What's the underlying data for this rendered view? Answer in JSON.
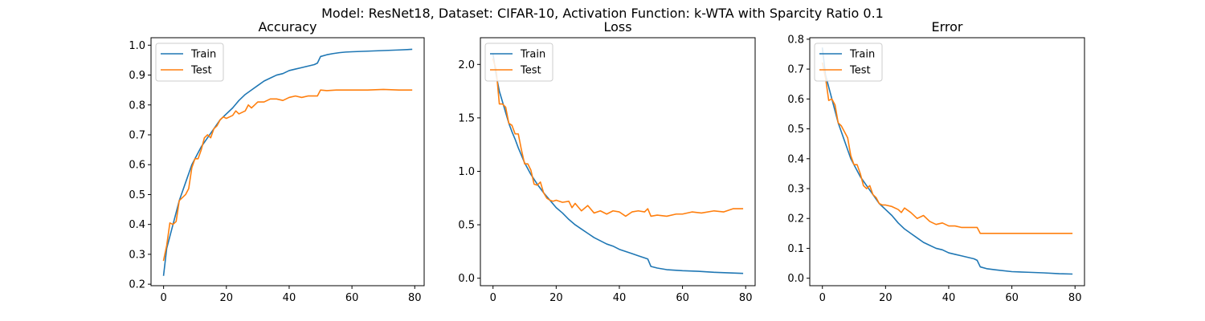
{
  "figure": {
    "suptitle": "Model: ResNet18, Dataset: CIFAR-10, Activation Function: k-WTA with Sparcity Ratio 0.1"
  },
  "chart_data": [
    {
      "type": "line",
      "title": "Accuracy",
      "xlabel": "",
      "ylabel": "",
      "xlim": [
        -4,
        83
      ],
      "ylim": [
        0.195,
        1.025
      ],
      "xticks": [
        0,
        20,
        40,
        60,
        80
      ],
      "xtick_labels": [
        "0",
        "20",
        "40",
        "60",
        "80"
      ],
      "yticks": [
        0.2,
        0.3,
        0.4,
        0.5,
        0.6,
        0.7,
        0.8,
        0.9,
        1.0
      ],
      "ytick_labels": [
        "0.2",
        "0.3",
        "0.4",
        "0.5",
        "0.6",
        "0.7",
        "0.8",
        "0.9",
        "1.0"
      ],
      "grid": false,
      "legend": "upper-left",
      "series": [
        {
          "name": "Train",
          "color": "#1f77b4",
          "x": [
            0,
            1,
            2,
            3,
            4,
            5,
            6,
            7,
            8,
            9,
            10,
            12,
            14,
            16,
            18,
            20,
            22,
            24,
            26,
            28,
            30,
            32,
            34,
            36,
            38,
            40,
            42,
            44,
            46,
            48,
            49,
            50,
            52,
            54,
            56,
            58,
            60,
            65,
            70,
            75,
            79
          ],
          "y": [
            0.23,
            0.32,
            0.36,
            0.4,
            0.44,
            0.48,
            0.51,
            0.54,
            0.57,
            0.6,
            0.62,
            0.66,
            0.69,
            0.72,
            0.75,
            0.77,
            0.79,
            0.815,
            0.835,
            0.85,
            0.865,
            0.88,
            0.89,
            0.9,
            0.905,
            0.915,
            0.92,
            0.925,
            0.93,
            0.935,
            0.94,
            0.962,
            0.968,
            0.972,
            0.975,
            0.977,
            0.978,
            0.98,
            0.982,
            0.984,
            0.986
          ]
        },
        {
          "name": "Test",
          "color": "#ff7f0e",
          "x": [
            0,
            1,
            2,
            3,
            4,
            5,
            6,
            7,
            8,
            9,
            10,
            11,
            12,
            13,
            14,
            15,
            16,
            17,
            18,
            19,
            20,
            21,
            22,
            23,
            24,
            25,
            26,
            27,
            28,
            29,
            30,
            32,
            34,
            36,
            38,
            40,
            42,
            44,
            46,
            48,
            49,
            50,
            52,
            55,
            60,
            65,
            70,
            75,
            79
          ],
          "y": [
            0.28,
            0.33,
            0.405,
            0.4,
            0.41,
            0.48,
            0.49,
            0.5,
            0.52,
            0.59,
            0.62,
            0.62,
            0.65,
            0.69,
            0.7,
            0.69,
            0.72,
            0.73,
            0.75,
            0.76,
            0.755,
            0.76,
            0.765,
            0.78,
            0.77,
            0.775,
            0.78,
            0.8,
            0.79,
            0.8,
            0.81,
            0.81,
            0.82,
            0.82,
            0.815,
            0.825,
            0.83,
            0.825,
            0.83,
            0.83,
            0.83,
            0.85,
            0.848,
            0.85,
            0.85,
            0.85,
            0.852,
            0.85,
            0.85
          ]
        }
      ]
    },
    {
      "type": "line",
      "title": "Loss",
      "xlabel": "",
      "ylabel": "",
      "xlim": [
        -4,
        83
      ],
      "ylim": [
        -0.07,
        2.25
      ],
      "xticks": [
        0,
        20,
        40,
        60,
        80
      ],
      "xtick_labels": [
        "0",
        "20",
        "40",
        "60",
        "80"
      ],
      "yticks": [
        0.0,
        0.5,
        1.0,
        1.5,
        2.0
      ],
      "ytick_labels": [
        "0.0",
        "0.5",
        "1.0",
        "1.5",
        "2.0"
      ],
      "grid": false,
      "legend": "upper-left",
      "series": [
        {
          "name": "Train",
          "color": "#1f77b4",
          "x": [
            0,
            1,
            2,
            3,
            4,
            5,
            6,
            7,
            8,
            9,
            10,
            12,
            14,
            16,
            18,
            20,
            22,
            24,
            26,
            28,
            30,
            32,
            34,
            36,
            38,
            40,
            42,
            44,
            46,
            48,
            49,
            50,
            52,
            55,
            60,
            65,
            70,
            75,
            79
          ],
          "y": [
            2.1,
            1.9,
            1.75,
            1.65,
            1.55,
            1.45,
            1.37,
            1.3,
            1.22,
            1.15,
            1.08,
            0.97,
            0.88,
            0.8,
            0.73,
            0.66,
            0.61,
            0.55,
            0.5,
            0.46,
            0.42,
            0.38,
            0.35,
            0.32,
            0.3,
            0.27,
            0.25,
            0.23,
            0.21,
            0.19,
            0.18,
            0.11,
            0.095,
            0.08,
            0.07,
            0.065,
            0.055,
            0.05,
            0.045
          ]
        },
        {
          "name": "Test",
          "color": "#ff7f0e",
          "x": [
            0,
            1,
            2,
            3,
            4,
            5,
            6,
            7,
            8,
            9,
            10,
            11,
            12,
            13,
            14,
            15,
            16,
            17,
            18,
            19,
            20,
            22,
            24,
            25,
            26,
            28,
            30,
            32,
            34,
            36,
            38,
            40,
            42,
            44,
            46,
            48,
            49,
            50,
            52,
            55,
            58,
            60,
            63,
            66,
            70,
            73,
            76,
            79
          ],
          "y": [
            2.05,
            1.95,
            1.63,
            1.63,
            1.6,
            1.45,
            1.43,
            1.35,
            1.35,
            1.2,
            1.07,
            1.07,
            1.01,
            0.88,
            0.87,
            0.9,
            0.8,
            0.75,
            0.73,
            0.72,
            0.73,
            0.71,
            0.72,
            0.66,
            0.7,
            0.63,
            0.68,
            0.61,
            0.63,
            0.6,
            0.63,
            0.62,
            0.58,
            0.62,
            0.63,
            0.62,
            0.65,
            0.58,
            0.59,
            0.58,
            0.6,
            0.6,
            0.62,
            0.61,
            0.63,
            0.62,
            0.65,
            0.65
          ]
        }
      ]
    },
    {
      "type": "line",
      "title": "Error",
      "xlabel": "",
      "ylabel": "",
      "xlim": [
        -4,
        83
      ],
      "ylim": [
        -0.025,
        0.805
      ],
      "xticks": [
        0,
        20,
        40,
        60,
        80
      ],
      "xtick_labels": [
        "0",
        "20",
        "40",
        "60",
        "80"
      ],
      "yticks": [
        0.0,
        0.1,
        0.2,
        0.3,
        0.4,
        0.5,
        0.6,
        0.7,
        0.8
      ],
      "ytick_labels": [
        "0.0",
        "0.1",
        "0.2",
        "0.3",
        "0.4",
        "0.5",
        "0.6",
        "0.7",
        "0.8"
      ],
      "grid": false,
      "legend": "upper-left",
      "series": [
        {
          "name": "Train",
          "color": "#1f77b4",
          "x": [
            0,
            1,
            2,
            3,
            4,
            5,
            6,
            7,
            8,
            9,
            10,
            12,
            14,
            16,
            18,
            20,
            22,
            24,
            26,
            28,
            30,
            32,
            34,
            36,
            38,
            40,
            42,
            44,
            46,
            48,
            49,
            50,
            52,
            55,
            60,
            65,
            70,
            75,
            79
          ],
          "y": [
            0.77,
            0.68,
            0.64,
            0.6,
            0.56,
            0.52,
            0.49,
            0.46,
            0.43,
            0.4,
            0.38,
            0.34,
            0.31,
            0.28,
            0.25,
            0.23,
            0.21,
            0.185,
            0.165,
            0.15,
            0.135,
            0.12,
            0.11,
            0.1,
            0.095,
            0.085,
            0.08,
            0.075,
            0.07,
            0.065,
            0.06,
            0.038,
            0.032,
            0.028,
            0.022,
            0.02,
            0.018,
            0.015,
            0.014
          ]
        },
        {
          "name": "Test",
          "color": "#ff7f0e",
          "x": [
            0,
            1,
            2,
            3,
            4,
            5,
            6,
            7,
            8,
            9,
            10,
            11,
            12,
            13,
            14,
            15,
            16,
            17,
            18,
            19,
            20,
            22,
            24,
            25,
            26,
            28,
            30,
            32,
            34,
            36,
            38,
            40,
            42,
            44,
            46,
            48,
            49,
            50,
            52,
            55,
            60,
            65,
            70,
            75,
            79
          ],
          "y": [
            0.72,
            0.67,
            0.595,
            0.6,
            0.58,
            0.52,
            0.51,
            0.49,
            0.47,
            0.41,
            0.38,
            0.38,
            0.35,
            0.31,
            0.3,
            0.31,
            0.28,
            0.27,
            0.25,
            0.245,
            0.245,
            0.24,
            0.23,
            0.22,
            0.235,
            0.22,
            0.2,
            0.21,
            0.19,
            0.18,
            0.185,
            0.175,
            0.175,
            0.17,
            0.17,
            0.17,
            0.17,
            0.15,
            0.15,
            0.15,
            0.15,
            0.15,
            0.15,
            0.15,
            0.15
          ]
        }
      ]
    }
  ]
}
